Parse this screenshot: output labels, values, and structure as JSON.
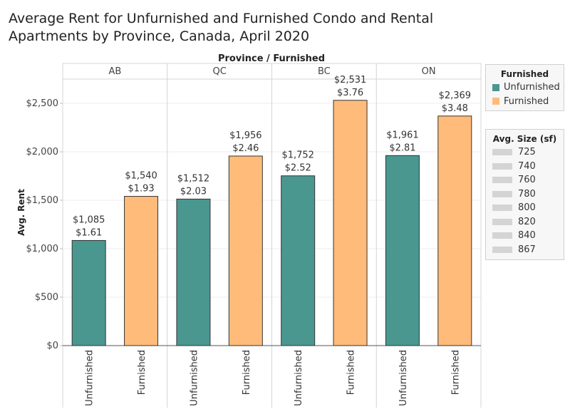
{
  "title": "Average Rent for Unfurnished and Furnished Condo and Rental Apartments by Province, Canada, April 2020",
  "header_label": "Province  /  Furnished",
  "legend_color": {
    "title": "Furnished",
    "items": [
      {
        "label": "Unfurnished",
        "color": "#4a9790"
      },
      {
        "label": "Furnished",
        "color": "#ffbb7a"
      }
    ]
  },
  "legend_size": {
    "title": "Avg. Size (sf)",
    "items": [
      "725",
      "740",
      "760",
      "780",
      "800",
      "820",
      "840",
      "867"
    ]
  },
  "chart_data": {
    "type": "bar",
    "ylabel": "Avg. Rent",
    "ylim": [
      0,
      2750
    ],
    "yticks": [
      0,
      500,
      1000,
      1500,
      2000,
      2500
    ],
    "ytick_labels": [
      "$0",
      "$500",
      "$1,000",
      "$1,500",
      "$2,000",
      "$2,500"
    ],
    "groups": [
      {
        "province": "AB",
        "bars": [
          {
            "category": "Unfurnished",
            "value": 1085,
            "label": "$1,085",
            "per_sf_label": "$1.61",
            "color": "#4a9790"
          },
          {
            "category": "Furnished",
            "value": 1540,
            "label": "$1,540",
            "per_sf_label": "$1.93",
            "color": "#ffbb7a"
          }
        ]
      },
      {
        "province": "QC",
        "bars": [
          {
            "category": "Unfurnished",
            "value": 1512,
            "label": "$1,512",
            "per_sf_label": "$2.03",
            "color": "#4a9790"
          },
          {
            "category": "Furnished",
            "value": 1956,
            "label": "$1,956",
            "per_sf_label": "$2.46",
            "color": "#ffbb7a"
          }
        ]
      },
      {
        "province": "BC",
        "bars": [
          {
            "category": "Unfurnished",
            "value": 1752,
            "label": "$1,752",
            "per_sf_label": "$2.52",
            "color": "#4a9790"
          },
          {
            "category": "Furnished",
            "value": 2531,
            "label": "$2,531",
            "per_sf_label": "$3.76",
            "color": "#ffbb7a"
          }
        ]
      },
      {
        "province": "ON",
        "bars": [
          {
            "category": "Unfurnished",
            "value": 1961,
            "label": "$1,961",
            "per_sf_label": "$2.81",
            "color": "#4a9790"
          },
          {
            "category": "Furnished",
            "value": 2369,
            "label": "$2,369",
            "per_sf_label": "$3.48",
            "color": "#ffbb7a"
          }
        ]
      }
    ]
  }
}
